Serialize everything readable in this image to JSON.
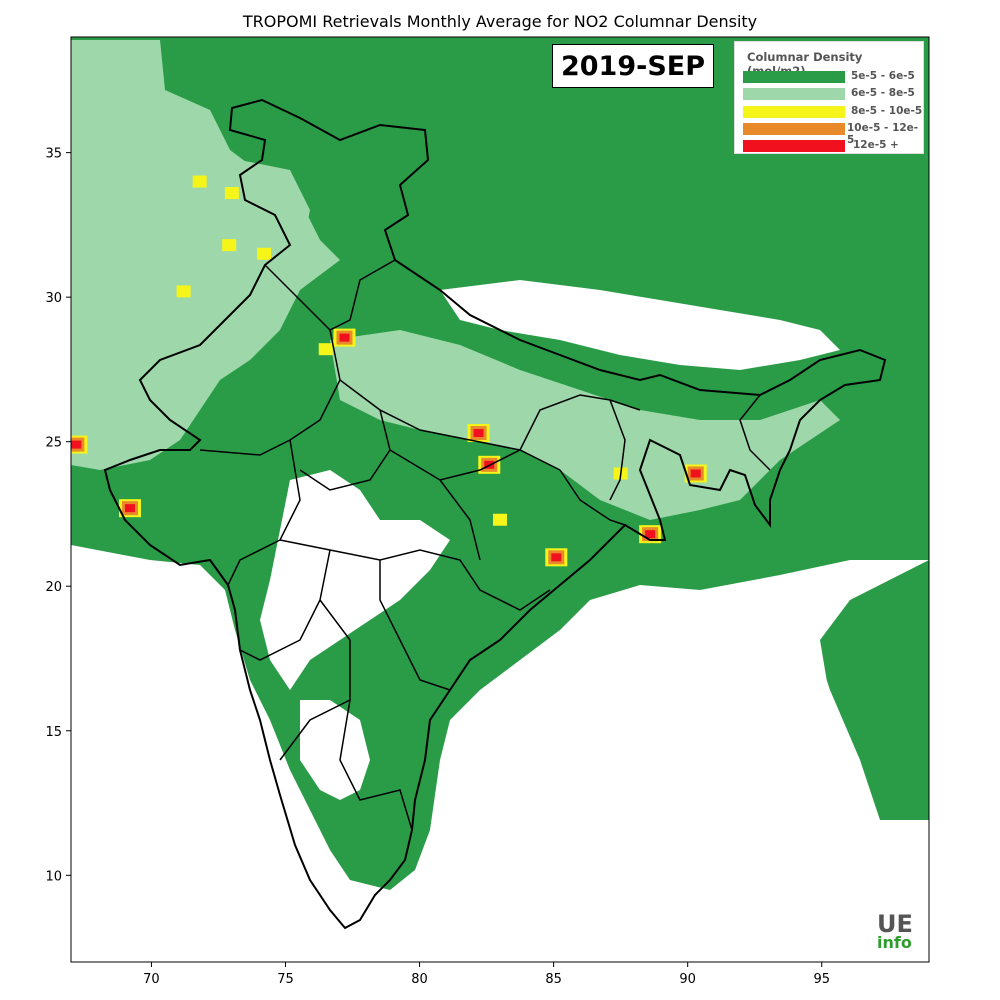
{
  "title": "TROPOMI Retrievals Monthly Average for NO2 Columnar Density",
  "date_label": "2019-SEP",
  "legend": {
    "title": "Columnar Density (mol/m2)",
    "items": [
      {
        "label": "5e-5 - 6e-5",
        "color": "#2a9c48"
      },
      {
        "label": "6e-5 - 8e-5",
        "color": "#9ed8aa"
      },
      {
        "label": "8e-5 - 10e-5",
        "color": "#f5f519"
      },
      {
        "label": "10e-5 - 12e-5",
        "color": "#e8892a"
      },
      {
        "label": "12e-5 +",
        "color": "#f0101e"
      }
    ]
  },
  "logo": {
    "top": "UE",
    "bottom": "info"
  },
  "chart_data": {
    "type": "heatmap",
    "x_ticks": [
      70,
      75,
      80,
      85,
      90,
      95
    ],
    "y_ticks": [
      10,
      15,
      20,
      25,
      30,
      35
    ],
    "xlim": [
      67,
      99
    ],
    "ylim": [
      7,
      39
    ],
    "colors": {
      "dark_green": "#2a9c48",
      "light_green": "#9ed8aa",
      "yellow": "#f5f519",
      "orange": "#e8892a",
      "red": "#f0101e"
    },
    "hotspots": [
      {
        "lon": 77.2,
        "lat": 28.6,
        "level": "red"
      },
      {
        "lon": 82.6,
        "lat": 24.2,
        "level": "red"
      },
      {
        "lon": 90.3,
        "lat": 23.9,
        "level": "red"
      },
      {
        "lon": 88.6,
        "lat": 21.8,
        "level": "red"
      },
      {
        "lon": 67.2,
        "lat": 24.9,
        "level": "red"
      },
      {
        "lon": 69.2,
        "lat": 22.7,
        "level": "red"
      },
      {
        "lon": 85.1,
        "lat": 21.0,
        "level": "red"
      },
      {
        "lon": 82.2,
        "lat": 25.3,
        "level": "red"
      },
      {
        "lon": 71.8,
        "lat": 34.0,
        "level": "yellow"
      },
      {
        "lon": 74.2,
        "lat": 31.5,
        "level": "yellow"
      },
      {
        "lon": 73.0,
        "lat": 33.6,
        "level": "yellow"
      },
      {
        "lon": 76.5,
        "lat": 28.2,
        "level": "yellow"
      },
      {
        "lon": 83.0,
        "lat": 22.3,
        "level": "yellow"
      },
      {
        "lon": 87.5,
        "lat": 23.9,
        "level": "yellow"
      },
      {
        "lon": 72.9,
        "lat": 31.8,
        "level": "yellow"
      },
      {
        "lon": 71.2,
        "lat": 30.2,
        "level": "yellow"
      }
    ]
  }
}
